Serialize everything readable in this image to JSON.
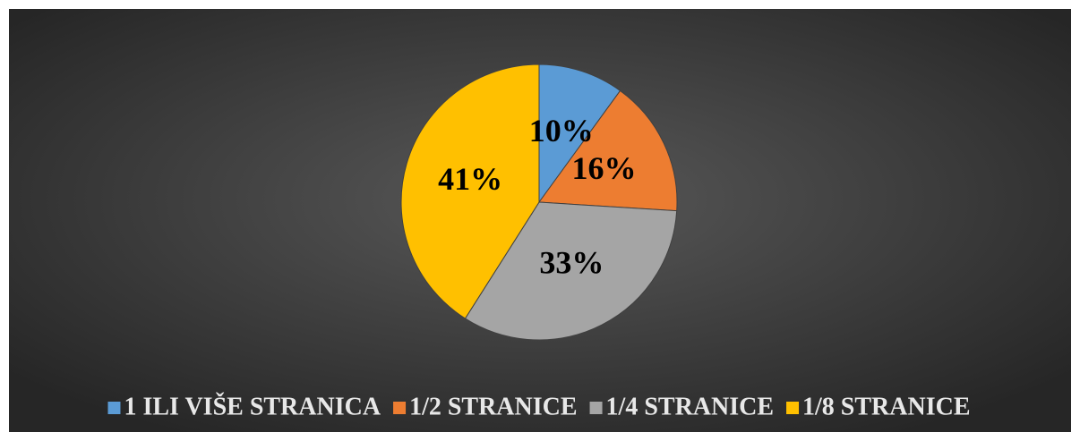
{
  "chart_data": {
    "type": "pie",
    "categories": [
      "1 ILI VIŠE STRANICA",
      "1/2 STRANICE",
      "1/4 STRANICE",
      "1/8 STRANICE"
    ],
    "values": [
      10,
      16,
      33,
      41
    ],
    "value_labels": [
      "10%",
      "16%",
      "33%",
      "41%"
    ],
    "colors": [
      "#5b9bd5",
      "#ed7d31",
      "#a5a5a5",
      "#ffc000"
    ],
    "legend": "bottom"
  }
}
